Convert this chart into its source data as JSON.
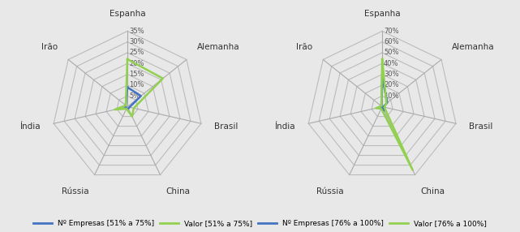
{
  "categories": [
    "Espanha",
    "Alemanha",
    "Brasil",
    "China",
    "Rússia",
    "Índia",
    "Irão"
  ],
  "chart1": {
    "max_val": 35,
    "tick_vals": [
      5,
      10,
      15,
      20,
      25,
      30,
      35
    ],
    "tick_labels": [
      "5%",
      "10%",
      "15%",
      "20%",
      "25%",
      "30%",
      "35%"
    ],
    "series": {
      "empresas": [
        9,
        8,
        1,
        1,
        1,
        1,
        1
      ],
      "valor": [
        22,
        21,
        3,
        5,
        1,
        6,
        1
      ]
    }
  },
  "chart2": {
    "max_val": 70,
    "tick_vals": [
      10,
      20,
      30,
      40,
      50,
      60,
      70
    ],
    "tick_labels": [
      "10%",
      "20%",
      "30%",
      "40%",
      "50%",
      "60%",
      "70%"
    ],
    "series": {
      "empresas": [
        27,
        6,
        1,
        4,
        1,
        2,
        1
      ],
      "valor": [
        44,
        5,
        2,
        65,
        2,
        6,
        1
      ]
    }
  },
  "color_empresas": "#4472C4",
  "color_valor": "#92D050",
  "bg_color": "#E8E8E8",
  "grid_color": "#BBBBBB",
  "spoke_color": "#AAAAAA",
  "legend": [
    "Nº Empresas [51% a 75%]",
    "Valor [51% a 75%]",
    "Nº Empresas [76% a 100%]",
    "Valor [76% a 100%]"
  ]
}
